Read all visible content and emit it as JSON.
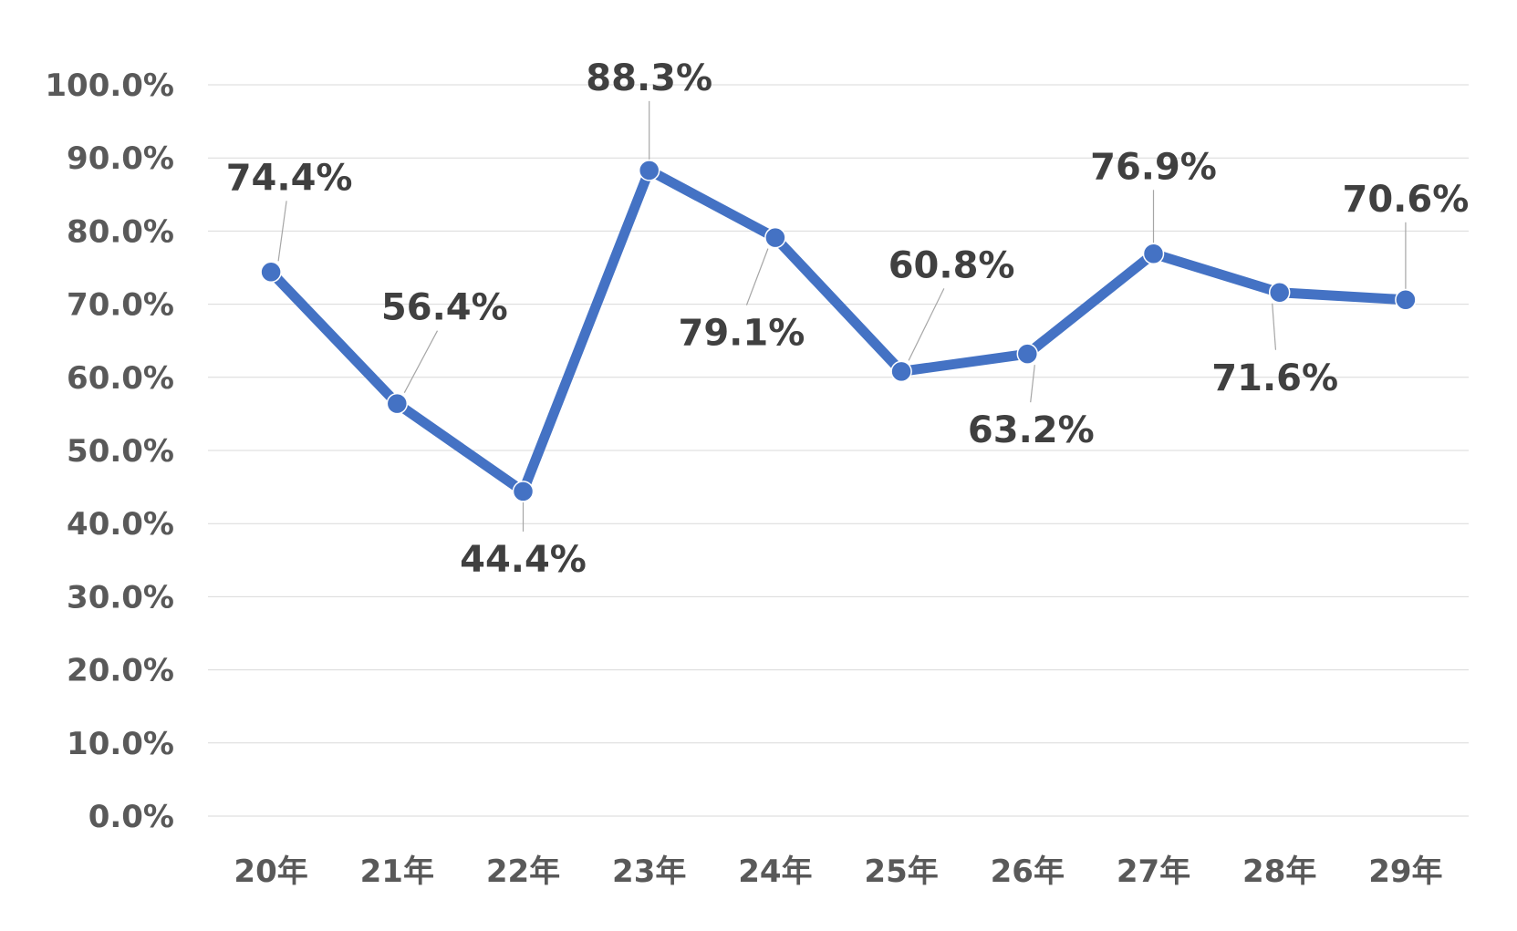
{
  "chart_data": {
    "type": "line",
    "categories": [
      "20年",
      "21年",
      "22年",
      "23年",
      "24年",
      "25年",
      "26年",
      "27年",
      "28年",
      "29年"
    ],
    "series": [
      {
        "values": [
          74.4,
          56.4,
          44.4,
          88.3,
          79.1,
          60.8,
          63.2,
          76.9,
          71.6,
          70.6
        ]
      }
    ],
    "data_labels": [
      "74.4%",
      "56.4%",
      "44.4%",
      "88.3%",
      "79.1%",
      "60.8%",
      "63.2%",
      "76.9%",
      "71.6%",
      "70.6%"
    ],
    "y_ticks": [
      "0.0%",
      "10.0%",
      "20.0%",
      "30.0%",
      "40.0%",
      "50.0%",
      "60.0%",
      "70.0%",
      "80.0%",
      "90.0%",
      "100.0%"
    ],
    "ylim": [
      0,
      100
    ],
    "grid": true,
    "legend": "none",
    "title": "",
    "xlabel": "",
    "ylabel": "",
    "line_color": "#4472C4"
  }
}
